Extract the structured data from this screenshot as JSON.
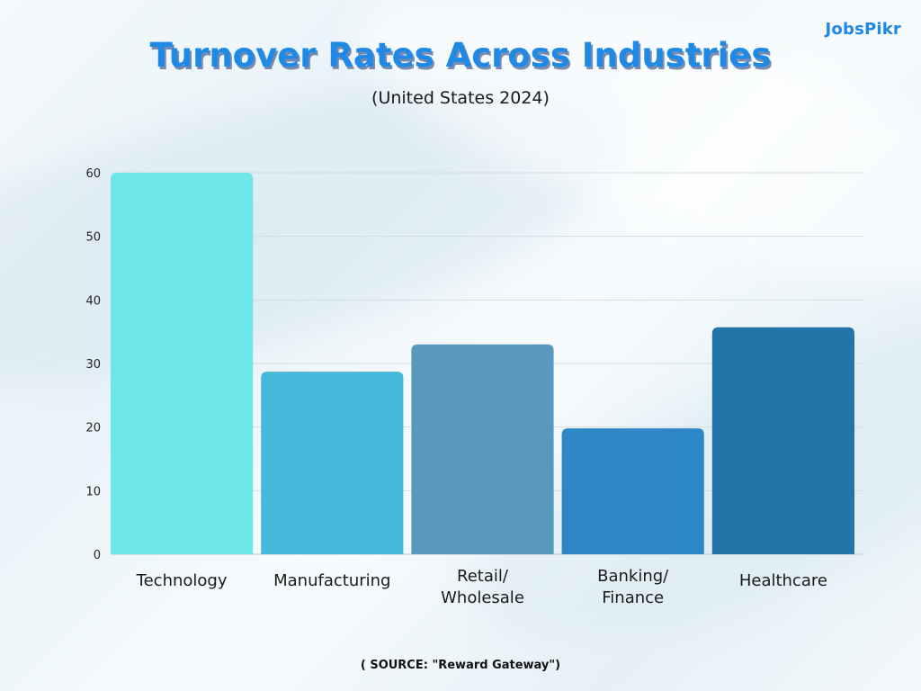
{
  "brand": {
    "logo_text": "JobsPikr"
  },
  "chart_data": {
    "type": "bar",
    "title": "Turnover Rates Across Industries",
    "subtitle": "(United States 2024)",
    "categories": [
      "Technology",
      "Manufacturing",
      "Retail/\nWholesale",
      "Banking/\nFinance",
      "Healthcare"
    ],
    "values": [
      60,
      28.7,
      33,
      19.8,
      35.7
    ],
    "colors": [
      "#6de6e9",
      "#44b9d9",
      "#5a99bf",
      "#2d87c7",
      "#2374a7"
    ],
    "yticks": [
      0,
      10,
      20,
      30,
      40,
      50,
      60
    ],
    "ylim": [
      0,
      60
    ],
    "grid": true,
    "legend": "none"
  },
  "footer": {
    "source": "( SOURCE: \"Reward Gateway\")"
  }
}
